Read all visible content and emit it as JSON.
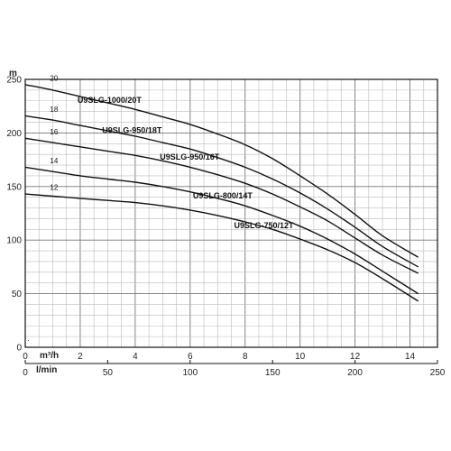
{
  "chart_data": {
    "type": "line",
    "title": "",
    "ylabel": "m",
    "xlabel": "m³/h",
    "x2label": "l/min",
    "xlim": [
      0,
      15
    ],
    "ylim": [
      0,
      250
    ],
    "x_ticks": [
      0,
      2,
      4,
      6,
      8,
      10,
      12,
      14
    ],
    "y_ticks": [
      0,
      50,
      100,
      150,
      200,
      250
    ],
    "x2_ticks": [
      0,
      50,
      100,
      150,
      200,
      250
    ],
    "grid": true,
    "series": [
      {
        "name": "U9SLG-1000/20T",
        "stage": "20",
        "x": [
          0,
          1,
          2,
          3,
          4,
          5,
          6,
          7,
          8,
          9,
          10,
          11,
          12,
          13,
          14.3
        ],
        "y": [
          245,
          240,
          234,
          228,
          222,
          215,
          208,
          199,
          189,
          176,
          160,
          143,
          124,
          104,
          84
        ]
      },
      {
        "name": "U9SLG-950/18T",
        "stage": "18",
        "x": [
          0,
          1,
          2,
          3,
          4,
          5,
          6,
          7,
          8,
          9,
          10,
          11,
          12,
          13,
          14.3
        ],
        "y": [
          216,
          212,
          207,
          202,
          197,
          191,
          185,
          177,
          168,
          157,
          144,
          129,
          112,
          94,
          75
        ]
      },
      {
        "name": "U9SLG-950/16T",
        "stage": "16",
        "x": [
          0,
          1,
          2,
          3,
          4,
          5,
          6,
          7,
          8,
          9,
          10,
          11,
          12,
          13,
          14.3
        ],
        "y": [
          195,
          191,
          187,
          183,
          179,
          174,
          168,
          161,
          153,
          143,
          131,
          118,
          102,
          86,
          69
        ]
      },
      {
        "name": "U9SLG-800/14T",
        "stage": "14",
        "x": [
          0,
          1,
          2,
          3,
          4,
          5,
          6,
          7,
          8,
          9,
          10,
          11,
          12,
          13,
          14.3
        ],
        "y": [
          168,
          164,
          160,
          157,
          154,
          150,
          145,
          139,
          132,
          123,
          113,
          101,
          87,
          71,
          50
        ]
      },
      {
        "name": "U9SLG-750/12T",
        "stage": "12",
        "x": [
          0,
          1,
          2,
          3,
          4,
          5,
          6,
          7,
          8,
          9,
          10,
          11,
          12,
          13,
          14.3
        ],
        "y": [
          143,
          141,
          139,
          137,
          135,
          132,
          128,
          123,
          117,
          110,
          101,
          91,
          79,
          64,
          43
        ]
      }
    ]
  }
}
